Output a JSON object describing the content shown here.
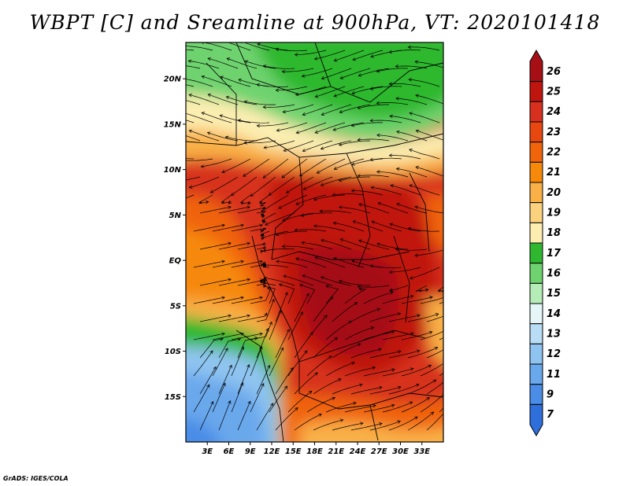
{
  "title": "WBPT [C] and Sreamline at 900hPa, VT: 2020101418",
  "credit": "GrADS: IGES/COLA",
  "map": {
    "lon_range": [
      0,
      36
    ],
    "lat_range": [
      -20,
      24
    ],
    "lat_ticks": [
      {
        "value": 20,
        "label": "20N"
      },
      {
        "value": 15,
        "label": "15N"
      },
      {
        "value": 10,
        "label": "10N"
      },
      {
        "value": 5,
        "label": "5N"
      },
      {
        "value": 0,
        "label": "EQ"
      },
      {
        "value": -5,
        "label": "5S"
      },
      {
        "value": -10,
        "label": "10S"
      },
      {
        "value": -15,
        "label": "15S"
      }
    ],
    "lon_ticks": [
      {
        "value": 3,
        "label": "3E"
      },
      {
        "value": 6,
        "label": "6E"
      },
      {
        "value": 9,
        "label": "9E"
      },
      {
        "value": 12,
        "label": "12E"
      },
      {
        "value": 15,
        "label": "15E"
      },
      {
        "value": 18,
        "label": "18E"
      },
      {
        "value": 21,
        "label": "21E"
      },
      {
        "value": 24,
        "label": "24E"
      },
      {
        "value": 27,
        "label": "27E"
      },
      {
        "value": 30,
        "label": "30E"
      },
      {
        "value": 33,
        "label": "33E"
      }
    ]
  },
  "colorbar": {
    "levels": [
      "26",
      "25",
      "24",
      "23",
      "22",
      "21",
      "20",
      "19",
      "18",
      "17",
      "16",
      "15",
      "14",
      "13",
      "12",
      "11",
      "9",
      "7"
    ],
    "colors": [
      "#a50f15",
      "#c0140f",
      "#d7301f",
      "#e8480f",
      "#f0640c",
      "#f6890a",
      "#f9b046",
      "#fcd27e",
      "#fbeeb0",
      "#2fb82f",
      "#6ed36e",
      "#b6ecb6",
      "#e6f6f8",
      "#b8ddf5",
      "#8fc4f0",
      "#6aa8ec",
      "#4a8ce6",
      "#2f6fdc"
    ]
  }
}
